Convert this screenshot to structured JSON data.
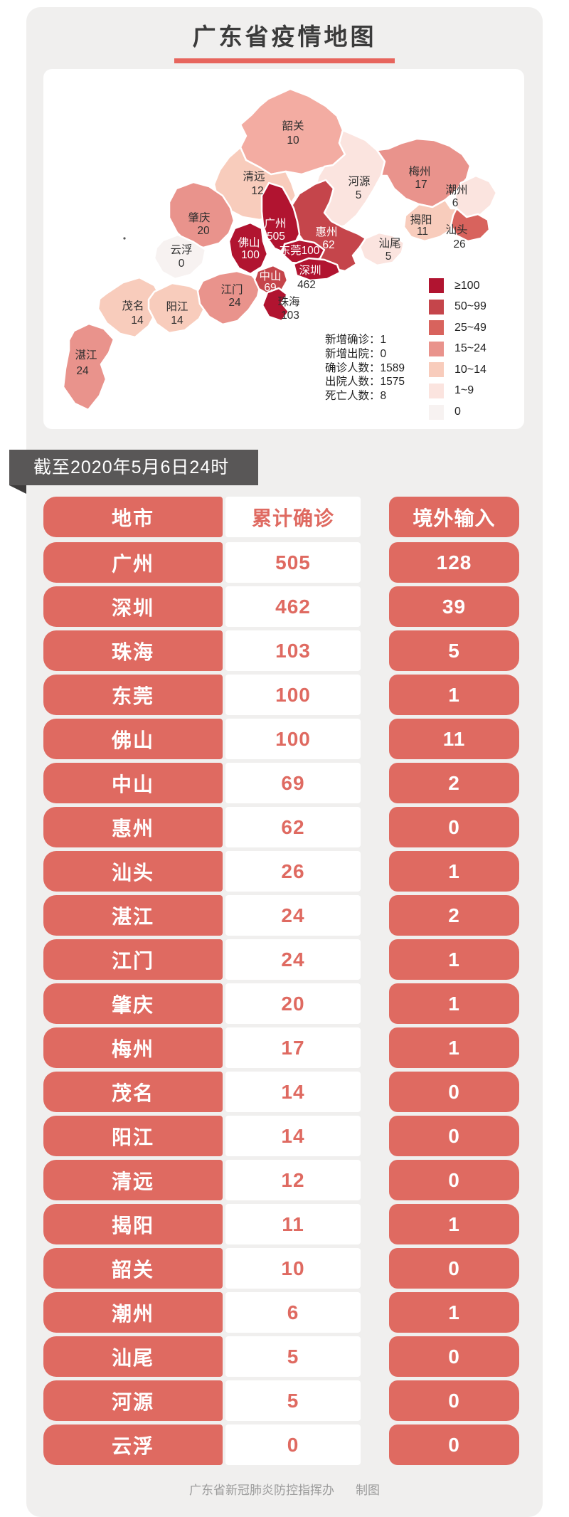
{
  "title": "广东省疫情地图",
  "banner": "截至2020年5月6日24时",
  "colors": {
    "accent_red": "#df6a61",
    "card_bg": "#f0efee",
    "banner_bg": "#595757",
    "title_underline": "#e7655d",
    "map_dark_red": "#b11430",
    "footer_text": "#9b9b9b"
  },
  "map": {
    "legend": [
      {
        "label": "≥100",
        "min": 100,
        "color": "#b11430"
      },
      {
        "label": "50~99",
        "min": 50,
        "color": "#c5454b"
      },
      {
        "label": "25~49",
        "min": 25,
        "color": "#d8635d"
      },
      {
        "label": "15~24",
        "min": 15,
        "color": "#e9938c"
      },
      {
        "label": "10~14",
        "min": 10,
        "color": "#f8ccbc"
      },
      {
        "label": "1~9",
        "min": 1,
        "color": "#fbe4df"
      },
      {
        "label": "0",
        "min": 0,
        "color": "#f7f2f1"
      }
    ],
    "stats": [
      {
        "label": "新增确诊",
        "value": "1"
      },
      {
        "label": "新增出院",
        "value": "0"
      },
      {
        "label": "确诊人数",
        "value": "1589"
      },
      {
        "label": "出院人数",
        "value": "1575"
      },
      {
        "label": "死亡人数",
        "value": "8"
      }
    ],
    "cities": [
      {
        "name": "韶关",
        "value": 10,
        "color": "#f3aca2"
      },
      {
        "name": "清远",
        "value": 12
      },
      {
        "name": "河源",
        "value": 5
      },
      {
        "name": "梅州",
        "value": 17
      },
      {
        "name": "潮州",
        "value": 6
      },
      {
        "name": "揭阳",
        "value": 11
      },
      {
        "name": "汕头",
        "value": 26
      },
      {
        "name": "汕尾",
        "value": 5
      },
      {
        "name": "惠州",
        "value": 62
      },
      {
        "name": "广州",
        "value": 505
      },
      {
        "name": "佛山",
        "value": 100
      },
      {
        "name": "东莞",
        "value": 100
      },
      {
        "name": "深圳",
        "value": 462
      },
      {
        "name": "中山",
        "value": 69
      },
      {
        "name": "珠海",
        "value": 103
      },
      {
        "name": "江门",
        "value": 24
      },
      {
        "name": "肇庆",
        "value": 20
      },
      {
        "name": "云浮",
        "value": 0
      },
      {
        "name": "茂名",
        "value": 14
      },
      {
        "name": "阳江",
        "value": 14
      },
      {
        "name": "湛江",
        "value": 24
      }
    ]
  },
  "table": {
    "headers": [
      "地市",
      "累计确诊",
      "境外输入"
    ],
    "rows": [
      [
        "广州",
        "505",
        "128"
      ],
      [
        "深圳",
        "462",
        "39"
      ],
      [
        "珠海",
        "103",
        "5"
      ],
      [
        "东莞",
        "100",
        "1"
      ],
      [
        "佛山",
        "100",
        "11"
      ],
      [
        "中山",
        "69",
        "2"
      ],
      [
        "惠州",
        "62",
        "0"
      ],
      [
        "汕头",
        "26",
        "1"
      ],
      [
        "湛江",
        "24",
        "2"
      ],
      [
        "江门",
        "24",
        "1"
      ],
      [
        "肇庆",
        "20",
        "1"
      ],
      [
        "梅州",
        "17",
        "1"
      ],
      [
        "茂名",
        "14",
        "0"
      ],
      [
        "阳江",
        "14",
        "0"
      ],
      [
        "清远",
        "12",
        "0"
      ],
      [
        "揭阳",
        "11",
        "1"
      ],
      [
        "韶关",
        "10",
        "0"
      ],
      [
        "潮州",
        "6",
        "1"
      ],
      [
        "汕尾",
        "5",
        "0"
      ],
      [
        "河源",
        "5",
        "0"
      ],
      [
        "云浮",
        "0",
        "0"
      ]
    ]
  },
  "footer": {
    "credit": "广东省新冠肺炎防控指挥办",
    "suffix": "制图"
  }
}
